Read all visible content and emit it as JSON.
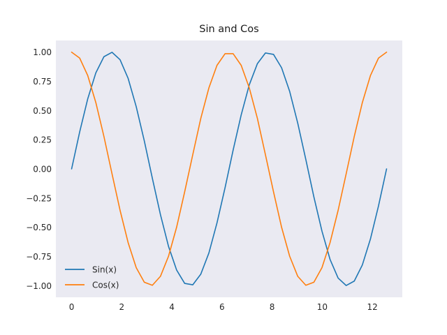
{
  "chart_data": {
    "type": "line",
    "title": "Sin and Cos",
    "xlabel": "",
    "ylabel": "",
    "xlim": [
      -0.628,
      13.195
    ],
    "ylim": [
      -1.1,
      1.1
    ],
    "xticks": [
      "0",
      "2",
      "4",
      "6",
      "8",
      "10",
      "12"
    ],
    "yticks": [
      "−1.00",
      "−0.75",
      "−0.50",
      "−0.25",
      "0.00",
      "0.25",
      "0.50",
      "0.75",
      "1.00"
    ],
    "grid": false,
    "legend_position": "lower-left",
    "background_color": "#eaeaf2",
    "x": [
      0.0,
      0.3222,
      0.6445,
      0.9667,
      1.289,
      1.6112,
      1.9334,
      2.2557,
      2.5779,
      2.9002,
      3.2224,
      3.5447,
      3.8669,
      4.1891,
      4.5114,
      4.8336,
      5.1559,
      5.4781,
      5.8003,
      6.1226,
      6.4448,
      6.7671,
      7.0893,
      7.4115,
      7.7338,
      8.056,
      8.3783,
      8.7005,
      9.0228,
      9.345,
      9.6672,
      9.9895,
      10.3117,
      10.634,
      10.9562,
      11.2784,
      11.6007,
      11.9229,
      12.2452,
      12.5674
    ],
    "series": [
      {
        "name": "Sin(x)",
        "color": "#1f77b4",
        "values": [
          0.0,
          0.317,
          0.601,
          0.823,
          0.961,
          0.999,
          0.935,
          0.775,
          0.533,
          0.24,
          -0.081,
          -0.392,
          -0.664,
          -0.866,
          -0.981,
          -0.993,
          -0.901,
          -0.72,
          -0.463,
          -0.161,
          0.161,
          0.463,
          0.72,
          0.901,
          0.993,
          0.981,
          0.866,
          0.664,
          0.392,
          0.081,
          -0.24,
          -0.533,
          -0.775,
          -0.935,
          -0.999,
          -0.961,
          -0.823,
          -0.601,
          -0.317,
          0.0
        ]
      },
      {
        "name": "Cos(x)",
        "color": "#ff7f0e",
        "values": [
          1.0,
          0.949,
          0.799,
          0.568,
          0.278,
          -0.041,
          -0.355,
          -0.632,
          -0.846,
          -0.971,
          -0.997,
          -0.92,
          -0.748,
          -0.5,
          -0.196,
          0.121,
          0.434,
          0.694,
          0.887,
          0.987,
          0.987,
          0.887,
          0.694,
          0.434,
          0.121,
          -0.196,
          -0.5,
          -0.748,
          -0.92,
          -0.997,
          -0.971,
          -0.846,
          -0.632,
          -0.355,
          -0.041,
          0.278,
          0.568,
          0.799,
          0.949,
          1.0
        ]
      }
    ]
  }
}
